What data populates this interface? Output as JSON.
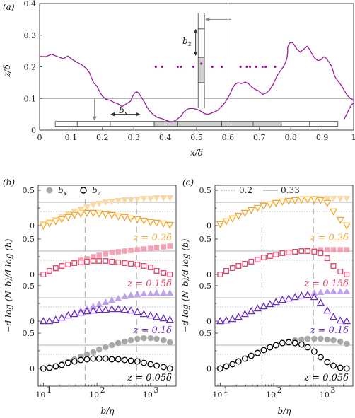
{
  "panel_labels": [
    "(a)",
    "(b)",
    "(c)"
  ],
  "chart_data": [
    {
      "id": "a",
      "type": "line",
      "xlabel": "x/δ",
      "ylabel": "z/δ",
      "xlim": [
        0,
        1
      ],
      "ylim": [
        0,
        0.4
      ],
      "xticks": [
        "0",
        "0.1",
        "0.2",
        "0.3",
        "0.4",
        "0.5",
        "0.6",
        "0.7",
        "0.8",
        "0.9",
        "1"
      ],
      "yticks": [
        "0",
        "0.1",
        "0.2",
        "0.3",
        "0.4"
      ],
      "reference_lines": {
        "horizontal_z": 0.1,
        "vertical_x": 0.6
      },
      "annotations": {
        "bx": "b",
        "bx_sub": "x",
        "bz": "b",
        "bz_sub": "z"
      },
      "interface_color": "#9c1c9c",
      "segments": [
        [
          [
            0.0,
            0.233
          ],
          [
            0.02,
            0.232
          ],
          [
            0.038,
            0.24
          ],
          [
            0.055,
            0.233
          ],
          [
            0.075,
            0.226
          ],
          [
            0.09,
            0.234
          ],
          [
            0.105,
            0.223
          ],
          [
            0.118,
            0.215
          ],
          [
            0.135,
            0.206
          ],
          [
            0.15,
            0.194
          ],
          [
            0.16,
            0.18
          ],
          [
            0.165,
            0.165
          ],
          [
            0.172,
            0.15
          ],
          [
            0.183,
            0.138
          ],
          [
            0.19,
            0.124
          ],
          [
            0.198,
            0.11
          ],
          [
            0.21,
            0.098
          ],
          [
            0.225,
            0.094
          ],
          [
            0.236,
            0.088
          ],
          [
            0.25,
            0.083
          ],
          [
            0.262,
            0.074
          ],
          [
            0.275,
            0.082
          ],
          [
            0.29,
            0.092
          ],
          [
            0.296,
            0.106
          ],
          [
            0.303,
            0.118
          ],
          [
            0.311,
            0.121
          ],
          [
            0.318,
            0.114
          ],
          [
            0.326,
            0.101
          ],
          [
            0.334,
            0.088
          ],
          [
            0.342,
            0.073
          ],
          [
            0.35,
            0.061
          ],
          [
            0.362,
            0.049
          ],
          [
            0.374,
            0.041
          ],
          [
            0.39,
            0.036
          ],
          [
            0.406,
            0.03
          ],
          [
            0.42,
            0.025
          ],
          [
            0.434,
            0.031
          ],
          [
            0.45,
            0.044
          ],
          [
            0.46,
            0.058
          ],
          [
            0.472,
            0.067
          ],
          [
            0.486,
            0.069
          ],
          [
            0.5,
            0.066
          ],
          [
            0.514,
            0.06
          ],
          [
            0.525,
            0.052
          ],
          [
            0.538,
            0.05
          ],
          [
            0.55,
            0.055
          ],
          [
            0.566,
            0.062
          ],
          [
            0.58,
            0.075
          ],
          [
            0.592,
            0.089
          ],
          [
            0.6,
            0.103
          ],
          [
            0.608,
            0.117
          ],
          [
            0.614,
            0.132
          ],
          [
            0.622,
            0.144
          ],
          [
            0.632,
            0.15
          ],
          [
            0.643,
            0.147
          ],
          [
            0.655,
            0.152
          ],
          [
            0.666,
            0.146
          ],
          [
            0.675,
            0.137
          ],
          [
            0.686,
            0.129
          ],
          [
            0.698,
            0.124
          ],
          [
            0.71,
            0.113
          ],
          [
            0.722,
            0.117
          ],
          [
            0.734,
            0.129
          ],
          [
            0.743,
            0.143
          ],
          [
            0.75,
            0.158
          ],
          [
            0.757,
            0.173
          ],
          [
            0.766,
            0.186
          ],
          [
            0.775,
            0.198
          ],
          [
            0.783,
            0.213
          ],
          [
            0.788,
            0.229
          ],
          [
            0.79,
            0.246
          ],
          [
            0.79,
            0.262
          ],
          [
            0.796,
            0.275
          ],
          [
            0.805,
            0.277
          ],
          [
            0.812,
            0.268
          ],
          [
            0.82,
            0.255
          ],
          [
            0.83,
            0.247
          ],
          [
            0.84,
            0.255
          ],
          [
            0.852,
            0.265
          ],
          [
            0.86,
            0.255
          ],
          [
            0.868,
            0.24
          ],
          [
            0.876,
            0.228
          ],
          [
            0.886,
            0.22
          ],
          [
            0.895,
            0.222
          ],
          [
            0.905,
            0.232
          ],
          [
            0.912,
            0.228
          ],
          [
            0.922,
            0.214
          ],
          [
            0.93,
            0.202
          ],
          [
            0.935,
            0.186
          ],
          [
            0.94,
            0.17
          ],
          [
            0.948,
            0.158
          ],
          [
            0.956,
            0.148
          ],
          [
            0.964,
            0.136
          ],
          [
            0.972,
            0.122
          ],
          [
            0.98,
            0.11
          ],
          [
            0.99,
            0.1
          ],
          [
            1.0,
            0.094
          ]
        ],
        [
          [
            0.97,
            0.035
          ],
          [
            0.978,
            0.05
          ],
          [
            0.986,
            0.068
          ],
          [
            0.993,
            0.08
          ],
          [
            1.0,
            0.086
          ]
        ]
      ],
      "dots_x": [
        0.37,
        0.39,
        0.44,
        0.45,
        0.49,
        0.55,
        0.58,
        0.64,
        0.66,
        0.67,
        0.69,
        0.71,
        0.72,
        0.75
      ],
      "dot_z": 0.2
    },
    {
      "id": "b",
      "type": "scatter",
      "xlabel": "b/η",
      "ylabel": "−d log (N_b)/d log (b)",
      "xscale": "log",
      "xlim": [
        10,
        2400
      ],
      "xtick_labels": [
        [
          "10",
          "1"
        ],
        [
          "10",
          "2"
        ],
        [
          "10",
          "3"
        ]
      ],
      "ytick_labels": [
        "0",
        "0.5"
      ],
      "legend": [
        {
          "label": "b",
          "sub": "x",
          "style": "filled-circle"
        },
        {
          "label": "b",
          "sub": "z",
          "style": "open-circle"
        }
      ],
      "x": [
        10,
        13,
        17,
        22,
        29,
        38,
        50,
        65,
        85,
        110,
        145,
        190,
        250,
        330,
        430,
        570,
        750,
        1000,
        1300,
        1750,
        2300
      ],
      "reference_values": [
        0.2,
        0.33
      ],
      "vlines": [
        60,
        550
      ],
      "groups": [
        {
          "label": "z = 0.2δ",
          "color": "#f0a830",
          "light": "#f8d9a6",
          "marker": "triangle-down",
          "bx": [
            0.02,
            0.05,
            0.08,
            0.12,
            0.16,
            0.2,
            0.23,
            0.26,
            0.29,
            0.31,
            0.33,
            0.34,
            0.35,
            0.36,
            0.36,
            0.37,
            0.38,
            0.38,
            0.39,
            0.39,
            0.39
          ],
          "bz": [
            0.0,
            0.03,
            0.06,
            0.09,
            0.12,
            0.15,
            0.17,
            0.18,
            0.18,
            0.17,
            0.16,
            0.15,
            0.13,
            0.12,
            0.1,
            0.09,
            0.07,
            0.05,
            0.04,
            0.03,
            0.01
          ]
        },
        {
          "label": "z = 0.15δ",
          "color": "#e0436a",
          "light": "#f3a2b5",
          "marker": "square",
          "bx": [
            0.0,
            0.04,
            0.08,
            0.11,
            0.14,
            0.17,
            0.2,
            0.22,
            0.25,
            0.27,
            0.29,
            0.31,
            0.32,
            0.33,
            0.34,
            0.35,
            0.36,
            0.37,
            0.38,
            0.39,
            0.4
          ],
          "bz": [
            0.0,
            0.05,
            0.09,
            0.12,
            0.14,
            0.16,
            0.17,
            0.18,
            0.19,
            0.19,
            0.19,
            0.18,
            0.17,
            0.16,
            0.15,
            0.14,
            0.12,
            0.1,
            0.05,
            0.02,
            0.0
          ]
        },
        {
          "label": "z = 0.1δ",
          "color": "#6b2ebf",
          "light": "#bda2eb",
          "marker": "triangle-up",
          "bx": [
            0.0,
            0.0,
            0.02,
            0.05,
            0.09,
            0.12,
            0.15,
            0.18,
            0.21,
            0.24,
            0.27,
            0.3,
            0.32,
            0.35,
            0.37,
            0.38,
            0.39,
            0.39,
            0.4,
            0.4,
            0.4
          ],
          "bz": [
            0.0,
            0.0,
            0.02,
            0.05,
            0.08,
            0.1,
            0.12,
            0.14,
            0.15,
            0.16,
            0.16,
            0.17,
            0.17,
            0.16,
            0.15,
            0.13,
            0.1,
            0.08,
            0.06,
            0.04,
            0.02
          ]
        },
        {
          "label": "z = 0.05δ",
          "color": "#000000",
          "light": "#a8a8a8",
          "marker": "circle",
          "bx": [
            0.0,
            0.01,
            0.03,
            0.06,
            0.1,
            0.13,
            0.17,
            0.2,
            0.23,
            0.27,
            0.3,
            0.33,
            0.36,
            0.38,
            0.4,
            0.42,
            0.43,
            0.43,
            0.42,
            0.4,
            0.37
          ],
          "bz": [
            0.0,
            0.01,
            0.03,
            0.05,
            0.08,
            0.1,
            0.12,
            0.13,
            0.14,
            0.14,
            0.14,
            0.13,
            0.13,
            0.12,
            0.11,
            0.1,
            0.08,
            0.06,
            0.04,
            0.02,
            0.0
          ]
        }
      ]
    },
    {
      "id": "c",
      "type": "scatter",
      "xlabel": "b/η",
      "ylabel": "−d log (N_b)/d log (b)",
      "xscale": "log",
      "xlim": [
        10,
        2400
      ],
      "xtick_labels": [
        [
          "10",
          "1"
        ],
        [
          "10",
          "2"
        ],
        [
          "10",
          "3"
        ]
      ],
      "ytick_labels": [
        "0",
        "0.5"
      ],
      "legend": [
        {
          "label": "0.2",
          "style": "dotted"
        },
        {
          "label": "0.33",
          "style": "solid"
        }
      ],
      "x": [
        10,
        13,
        17,
        22,
        29,
        38,
        50,
        65,
        85,
        110,
        145,
        190,
        250,
        330,
        430,
        570,
        750,
        1000,
        1300,
        1750,
        2300
      ],
      "reference_values": [
        0.2,
        0.33
      ],
      "vlines": [
        60,
        550
      ],
      "groups": [
        {
          "label": "z = 0.2δ",
          "color": "#f0a830",
          "light": "#f8d9a6",
          "marker": "triangle-down",
          "bx": [
            0.02,
            0.06,
            0.1,
            0.14,
            0.18,
            0.22,
            0.25,
            0.28,
            0.3,
            0.32,
            0.34,
            0.35,
            0.36,
            0.37,
            0.37,
            0.38,
            0.38,
            0.38,
            0.38,
            0.38,
            0.38
          ],
          "bz": [
            0.02,
            0.06,
            0.1,
            0.14,
            0.18,
            0.22,
            0.25,
            0.28,
            0.3,
            0.32,
            0.34,
            0.35,
            0.36,
            0.37,
            0.37,
            0.37,
            0.36,
            0.32,
            0.2,
            0.08,
            0.0
          ]
        },
        {
          "label": "z = 0.15δ",
          "color": "#e0436a",
          "light": "#f3a2b5",
          "marker": "square",
          "bx": [
            0.0,
            0.05,
            0.09,
            0.12,
            0.15,
            0.18,
            0.21,
            0.24,
            0.26,
            0.28,
            0.3,
            0.31,
            0.32,
            0.33,
            0.34,
            0.34,
            0.35,
            0.35,
            0.35,
            0.35,
            0.35
          ],
          "bz": [
            0.0,
            0.05,
            0.09,
            0.12,
            0.15,
            0.18,
            0.21,
            0.24,
            0.26,
            0.28,
            0.3,
            0.31,
            0.32,
            0.33,
            0.33,
            0.32,
            0.3,
            0.23,
            0.12,
            0.04,
            0.0
          ]
        },
        {
          "label": "z = 0.1δ",
          "color": "#6b2ebf",
          "light": "#bda2eb",
          "marker": "triangle-up",
          "bx": [
            0.0,
            0.01,
            0.03,
            0.06,
            0.1,
            0.14,
            0.18,
            0.21,
            0.24,
            0.27,
            0.3,
            0.32,
            0.34,
            0.36,
            0.38,
            0.4,
            0.41,
            0.42,
            0.42,
            0.42,
            0.42
          ],
          "bz": [
            0.0,
            0.01,
            0.03,
            0.06,
            0.1,
            0.14,
            0.18,
            0.21,
            0.24,
            0.27,
            0.3,
            0.32,
            0.34,
            0.36,
            0.37,
            0.34,
            0.26,
            0.15,
            0.06,
            0.01,
            0.0
          ]
        },
        {
          "label": "z = 0.05δ",
          "color": "#000000",
          "light": "#a8a8a8",
          "marker": "circle",
          "bx": [
            0.0,
            0.03,
            0.06,
            0.1,
            0.14,
            0.18,
            0.22,
            0.26,
            0.3,
            0.33,
            0.36,
            0.38,
            0.4,
            0.41,
            0.42,
            0.42,
            0.42,
            0.41,
            0.4,
            0.38,
            0.35
          ],
          "bz": [
            0.0,
            0.03,
            0.06,
            0.1,
            0.14,
            0.18,
            0.22,
            0.26,
            0.3,
            0.33,
            0.36,
            0.37,
            0.36,
            0.34,
            0.3,
            0.24,
            0.16,
            0.09,
            0.04,
            0.01,
            0.0
          ]
        }
      ]
    }
  ]
}
